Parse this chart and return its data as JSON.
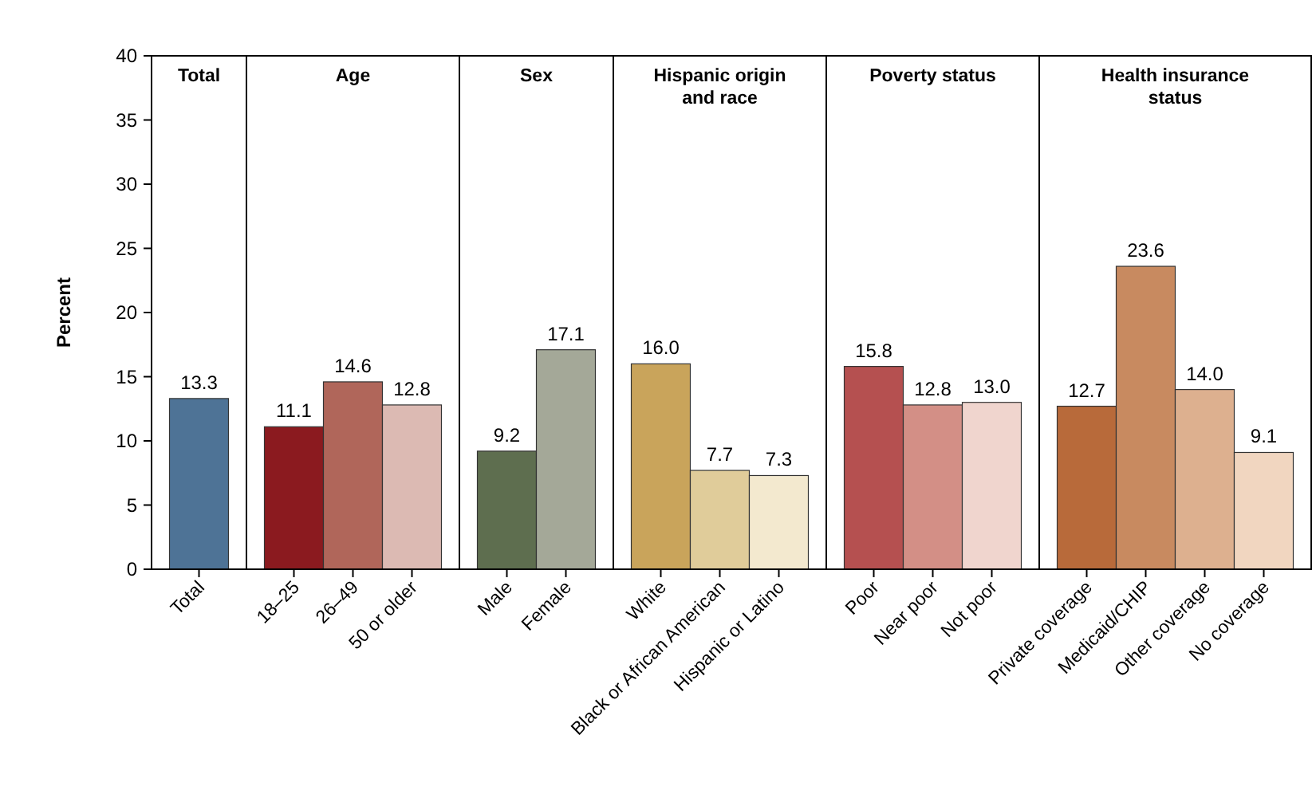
{
  "chart_data": [
    {
      "type": "bar",
      "title": "Total",
      "ylabel": "Percent",
      "categories": [
        "Total"
      ],
      "values": [
        13.3
      ],
      "colors": [
        "#4e7396"
      ],
      "data_labels": true,
      "ylim": [
        0,
        40
      ],
      "yticks": [
        0,
        5,
        10,
        15,
        20,
        25,
        30,
        35,
        40
      ]
    },
    {
      "type": "bar",
      "title": "Age",
      "categories": [
        "18–25",
        "26–49",
        "50 or older"
      ],
      "values": [
        11.1,
        14.6,
        12.8
      ],
      "colors": [
        "#8b1a1f",
        "#b0665a",
        "#dcbab3"
      ],
      "data_labels": true,
      "ylim": [
        0,
        40
      ],
      "yticks": [
        0,
        5,
        10,
        15,
        20,
        25,
        30,
        35,
        40
      ],
      "tick_labels": "x"
    },
    {
      "type": "bar",
      "title": "Sex",
      "categories": [
        "Male",
        "Female"
      ],
      "values": [
        9.2,
        17.1
      ],
      "colors": [
        "#5e6e4f",
        "#a4a898"
      ],
      "data_labels": true,
      "ylim": [
        0,
        40
      ],
      "yticks": [
        0,
        5,
        10,
        15,
        20,
        25,
        30,
        35,
        40
      ],
      "tick_labels": "x"
    },
    {
      "type": "bar",
      "title": "Hispanic origin and race",
      "categories": [
        "White",
        "Black or African American",
        "Hispanic or Latino"
      ],
      "values": [
        16.0,
        7.7,
        7.3
      ],
      "colors": [
        "#c9a45b",
        "#e0cc9a",
        "#f3e9cf"
      ],
      "value_labels": [
        "16.0",
        "7.7",
        "7.3"
      ],
      "ylim": [
        0,
        40
      ],
      "yticks": [
        0,
        5,
        10,
        15,
        20,
        25,
        30,
        35,
        40
      ],
      "tick_labels": "x"
    },
    {
      "type": "bar",
      "title": "Poverty status",
      "categories": [
        "Poor",
        "Near poor",
        "Not poor"
      ],
      "values": [
        15.8,
        12.8,
        13.0
      ],
      "colors": [
        "#b55050",
        "#d38f86",
        "#f0d5ce"
      ],
      "value_labels": [
        "15.8",
        "12.8",
        "13.0"
      ],
      "ylim": [
        0,
        40
      ],
      "yticks": [
        0,
        5,
        10,
        15,
        20,
        25,
        30,
        35,
        40
      ],
      "tick_labels": "x"
    },
    {
      "type": "bar",
      "title": "Health insurance status",
      "categories": [
        "Private coverage",
        "Medicaid/CHIP",
        "Other coverage",
        "No coverage"
      ],
      "values": [
        12.7,
        23.6,
        14.0,
        9.1
      ],
      "colors": [
        "#b86a3a",
        "#c88a60",
        "#ddb08f",
        "#f1d6c0"
      ],
      "value_labels": [
        "12.7",
        "23.6",
        "14.0",
        "9.1"
      ],
      "ylim": [
        0,
        40
      ],
      "yticks": [
        0,
        5,
        10,
        15,
        20,
        25,
        30,
        35,
        40
      ],
      "tick_labels": "x"
    }
  ]
}
